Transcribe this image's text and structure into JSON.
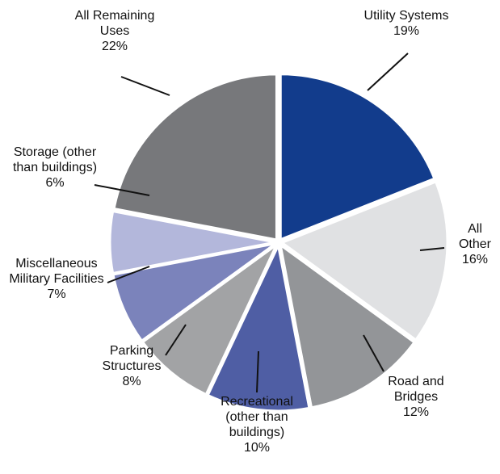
{
  "chart_data": {
    "type": "pie",
    "categories": [
      "Utility Systems",
      "All Other",
      "Road and Bridges",
      "Recreational (other than buildings)",
      "Parking Structures",
      "Miscellaneous Military Facilities",
      "Storage (other than buildings)",
      "All Remaining Uses"
    ],
    "values": [
      19,
      16,
      12,
      10,
      8,
      7,
      6,
      22
    ],
    "value_labels": [
      "19%",
      "16%",
      "12%",
      "10%",
      "8%",
      "7%",
      "6%",
      "22%"
    ],
    "colors": [
      "#123c8c",
      "#e0e1e3",
      "#939598",
      "#4f5ea4",
      "#a2a3a5",
      "#7b83bb",
      "#b3b7db",
      "#77787b"
    ]
  }
}
